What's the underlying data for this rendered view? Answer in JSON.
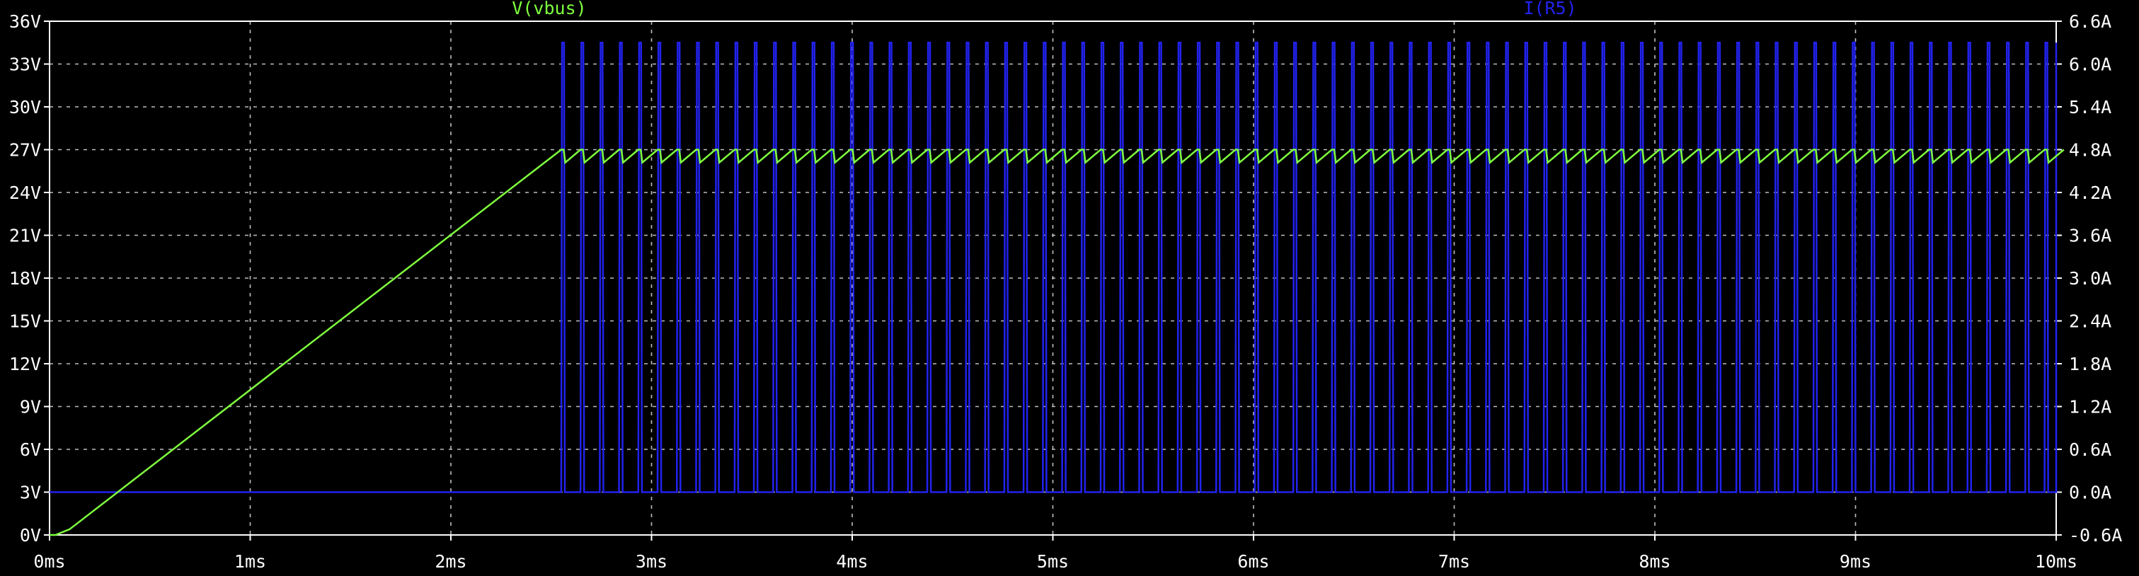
{
  "chart_data": {
    "type": "line",
    "x": {
      "min": 0,
      "max": 10,
      "unit": "ms",
      "ticks": [
        0,
        1,
        2,
        3,
        4,
        5,
        6,
        7,
        8,
        9,
        10
      ],
      "tick_labels": [
        "0ms",
        "1ms",
        "2ms",
        "3ms",
        "4ms",
        "5ms",
        "6ms",
        "7ms",
        "8ms",
        "9ms",
        "10ms"
      ]
    },
    "y_left": {
      "min": 0,
      "max": 36,
      "unit": "V",
      "ticks": [
        0,
        3,
        6,
        9,
        12,
        15,
        18,
        21,
        24,
        27,
        30,
        33,
        36
      ],
      "tick_labels": [
        "0V",
        "3V",
        "6V",
        "9V",
        "12V",
        "15V",
        "18V",
        "21V",
        "24V",
        "27V",
        "30V",
        "33V",
        "36V"
      ]
    },
    "y_right": {
      "min": -0.6,
      "max": 6.6,
      "unit": "A",
      "ticks": [
        -0.6,
        0.0,
        0.6,
        1.2,
        1.8,
        2.4,
        3.0,
        3.6,
        4.2,
        4.8,
        5.4,
        6.0,
        6.6
      ],
      "tick_labels": [
        "-0.6A",
        "0.0A",
        "0.6A",
        "1.2A",
        "1.8A",
        "2.4A",
        "3.0A",
        "3.6A",
        "4.2A",
        "4.8A",
        "5.4A",
        "6.0A",
        "6.6A"
      ]
    },
    "grid": true,
    "series": [
      {
        "name": "V(vbus)",
        "axis": "left",
        "color": "#7fff3f",
        "points": [
          [
            0,
            0
          ],
          [
            0.03,
            0
          ],
          [
            0.1,
            0.4
          ],
          [
            2.55,
            27.0
          ]
        ],
        "ripple": {
          "start": 2.55,
          "end": 10.0,
          "period": 0.096,
          "high": 27.0,
          "low": 26.1
        }
      },
      {
        "name": "I(R5)",
        "axis": "right",
        "color": "#2222ee",
        "baseline": 0.0,
        "pulses": {
          "start": 2.55,
          "end": 10.0,
          "period": 0.096,
          "peak": 6.3,
          "width": 0.018
        }
      }
    ]
  }
}
